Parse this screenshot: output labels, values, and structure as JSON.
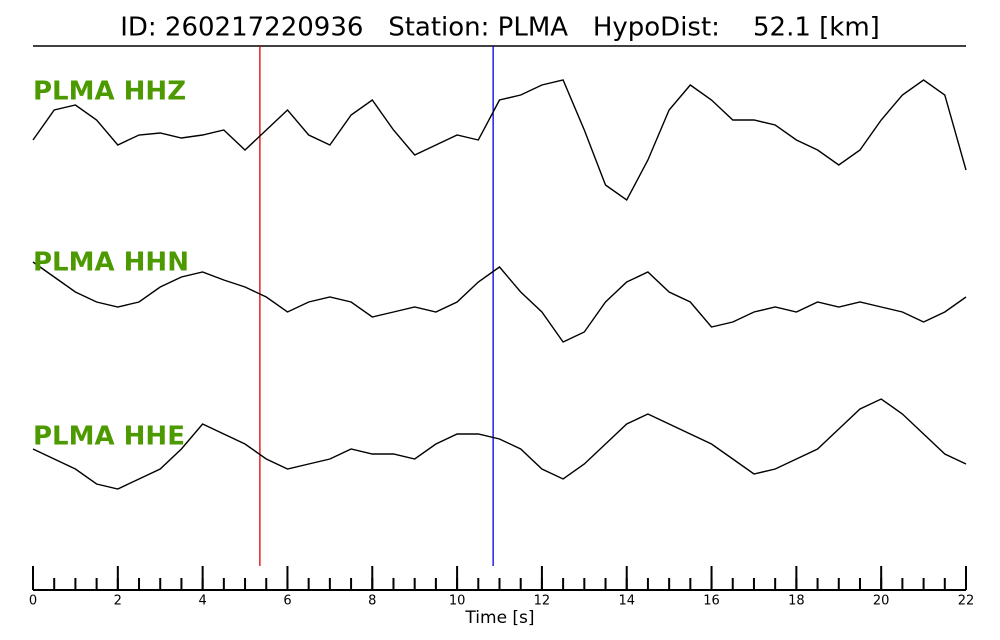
{
  "chart_data": {
    "type": "line",
    "title": "ID: 260217220936   Station: PLMA   HypoDist:    52.1 [km]",
    "x_label": "Time [s]",
    "x": [
      0,
      0.5,
      1,
      1.5,
      2,
      2.5,
      3,
      3.5,
      4,
      4.5,
      5,
      5.5,
      6,
      6.5,
      7,
      7.5,
      8,
      8.5,
      9,
      9.5,
      10,
      10.5,
      11,
      11.5,
      12,
      12.5,
      13,
      13.5,
      14,
      14.5,
      15,
      15.5,
      16,
      16.5,
      17,
      17.5,
      18,
      18.5,
      19,
      19.5,
      20,
      20.5,
      21,
      21.5,
      22
    ],
    "series": [
      {
        "name": "PLMA HHZ",
        "color": "#000000",
        "label_color": "#4c9a00",
        "values": [
          0,
          3,
          3.5,
          2,
          -0.5,
          0.5,
          0.7,
          0.2,
          0.5,
          1,
          -1,
          1,
          3,
          0.5,
          -0.5,
          2.5,
          4,
          1,
          -1.5,
          -0.5,
          0.5,
          0,
          4,
          4.5,
          5.5,
          6,
          1,
          -4.5,
          -6,
          -2,
          3,
          5.5,
          4,
          2,
          2,
          1.5,
          0,
          -1,
          -2.5,
          -1,
          2,
          4.5,
          6,
          4.5,
          -3
        ]
      },
      {
        "name": "PLMA HHN",
        "color": "#000000",
        "label_color": "#4c9a00",
        "values": [
          3.5,
          2,
          0.5,
          -0.5,
          -1,
          -0.5,
          1,
          2,
          2.5,
          1.7,
          1,
          0,
          -1.5,
          -0.5,
          0,
          -0.5,
          -2,
          -1.5,
          -1,
          -1.5,
          -0.5,
          1.5,
          3,
          0.5,
          -1.5,
          -4.5,
          -3.5,
          -0.5,
          1.5,
          2.5,
          0.5,
          -0.5,
          -3,
          -2.5,
          -1.5,
          -1,
          -1.5,
          -0.5,
          -1,
          -0.5,
          -1,
          -1.5,
          -2.5,
          -1.5,
          0
        ]
      },
      {
        "name": "PLMA HHE",
        "color": "#000000",
        "label_color": "#4c9a00",
        "values": [
          0.5,
          -0.5,
          -1.5,
          -3,
          -3.5,
          -2.5,
          -1.5,
          0.5,
          3,
          2,
          1,
          -0.5,
          -1.5,
          -1,
          -0.5,
          0.5,
          0,
          0,
          -0.5,
          1,
          2,
          2,
          1.5,
          0.5,
          -1.5,
          -2.5,
          -1,
          1,
          3,
          4,
          3,
          2,
          1,
          -0.5,
          -2,
          -1.5,
          -0.5,
          0.5,
          2.5,
          4.5,
          5.5,
          4,
          2,
          0,
          -1
        ]
      }
    ],
    "ylim": [
      -10,
      10
    ],
    "xlim": [
      0,
      22
    ],
    "xticks": [
      0,
      2,
      4,
      6,
      8,
      10,
      12,
      14,
      16,
      18,
      20,
      22
    ],
    "xminor_step": 0.5,
    "markers": [
      {
        "x": 5.35,
        "color": "#e00000"
      },
      {
        "x": 10.85,
        "color": "#0000e0"
      }
    ]
  }
}
